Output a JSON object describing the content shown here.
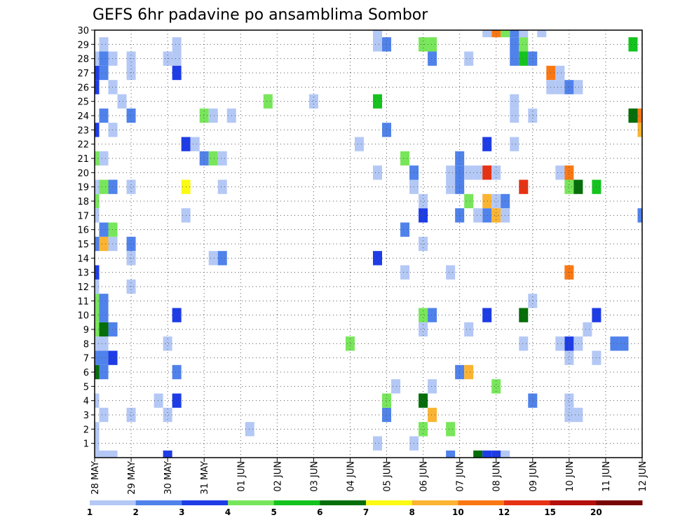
{
  "chart_data": {
    "type": "heatmap",
    "title": "GEFS 6hr padavine po ansamblima Sombor",
    "xlabel": "",
    "ylabel": "",
    "x_ticks": [
      "28 MAY",
      "29 MAY",
      "30 MAY",
      "31 MAY",
      "01 JUN",
      "02 JUN",
      "03 JUN",
      "04 JUN",
      "05 JUN",
      "06 JUN",
      "07 JUN",
      "08 JUN",
      "09 JUN",
      "10 JUN",
      "11 JUN",
      "12 JUN"
    ],
    "y_ticks": [
      "1",
      "2",
      "3",
      "4",
      "5",
      "6",
      "7",
      "8",
      "9",
      "10",
      "11",
      "12",
      "13",
      "14",
      "15",
      "16",
      "17",
      "18",
      "19",
      "20",
      "21",
      "22",
      "23",
      "24",
      "25",
      "26",
      "27",
      "28",
      "29",
      "30"
    ],
    "xlim": [
      0,
      60
    ],
    "ylim": [
      0,
      30
    ],
    "grid": true,
    "step_unit": "6h",
    "colorbar": {
      "labels": [
        "1",
        "2",
        "3",
        "4",
        "5",
        "6",
        "7",
        "8",
        "10",
        "12",
        "15",
        "20"
      ],
      "colors": [
        "#b4c8f5",
        "#5082eb",
        "#1e3ce6",
        "#78e65a",
        "#14c31e",
        "#056e0a",
        "#fafa14",
        "#fab432",
        "#fa7814",
        "#e63214",
        "#b40f0a",
        "#780505"
      ]
    },
    "cells": [
      [
        0,
        0,
        1
      ],
      [
        1,
        0,
        1
      ],
      [
        2,
        0,
        1
      ],
      [
        0,
        1,
        1
      ],
      [
        0,
        2,
        1
      ],
      [
        1,
        3,
        1
      ],
      [
        0,
        4,
        1
      ],
      [
        0,
        6,
        6
      ],
      [
        1,
        6,
        2
      ],
      [
        0,
        7,
        2
      ],
      [
        1,
        7,
        2
      ],
      [
        2,
        7,
        3
      ],
      [
        0,
        8,
        1
      ],
      [
        1,
        8,
        1
      ],
      [
        0,
        9,
        4
      ],
      [
        1,
        9,
        6
      ],
      [
        2,
        9,
        2
      ],
      [
        0,
        10,
        4
      ],
      [
        1,
        10,
        2
      ],
      [
        0,
        11,
        4
      ],
      [
        1,
        11,
        2
      ],
      [
        0,
        12,
        1
      ],
      [
        0,
        13,
        3
      ],
      [
        0,
        15,
        2
      ],
      [
        1,
        15,
        8
      ],
      [
        2,
        15,
        1
      ],
      [
        1,
        16,
        2
      ],
      [
        2,
        16,
        4
      ],
      [
        0,
        17,
        1
      ],
      [
        0,
        18,
        4
      ],
      [
        0,
        19,
        1
      ],
      [
        1,
        19,
        4
      ],
      [
        2,
        19,
        2
      ],
      [
        0,
        21,
        4
      ],
      [
        1,
        21,
        1
      ],
      [
        0,
        23,
        3
      ],
      [
        2,
        23,
        1
      ],
      [
        1,
        24,
        2
      ],
      [
        0,
        26,
        3
      ],
      [
        2,
        26,
        1
      ],
      [
        0,
        27,
        3
      ],
      [
        1,
        27,
        2
      ],
      [
        0,
        28,
        1
      ],
      [
        1,
        28,
        2
      ],
      [
        2,
        28,
        1
      ],
      [
        1,
        29,
        1
      ],
      [
        4,
        3,
        1
      ],
      [
        4,
        28,
        1
      ],
      [
        4,
        24,
        2
      ],
      [
        4,
        19,
        1
      ],
      [
        4,
        15,
        2
      ],
      [
        4,
        14,
        1
      ],
      [
        4,
        12,
        1
      ],
      [
        3,
        25,
        1
      ],
      [
        4,
        27,
        1
      ],
      [
        8,
        0,
        3
      ],
      [
        8,
        3,
        1
      ],
      [
        7,
        4,
        1
      ],
      [
        9,
        4,
        3
      ],
      [
        8,
        8,
        1
      ],
      [
        9,
        6,
        2
      ],
      [
        9,
        10,
        3
      ],
      [
        9,
        29,
        1
      ],
      [
        8,
        28,
        1
      ],
      [
        9,
        28,
        1
      ],
      [
        9,
        27,
        3
      ],
      [
        10,
        17,
        1
      ],
      [
        10,
        19,
        7
      ],
      [
        10,
        22,
        3
      ],
      [
        11,
        22,
        1
      ],
      [
        12,
        21,
        2
      ],
      [
        13,
        21,
        4
      ],
      [
        14,
        21,
        1
      ],
      [
        12,
        24,
        4
      ],
      [
        13,
        24,
        1
      ],
      [
        15,
        24,
        1
      ],
      [
        13,
        14,
        1
      ],
      [
        14,
        14,
        2
      ],
      [
        14,
        19,
        1
      ],
      [
        19,
        25,
        4
      ],
      [
        17,
        2,
        1
      ],
      [
        24,
        25,
        1
      ],
      [
        29,
        22,
        1
      ],
      [
        28,
        8,
        4
      ],
      [
        31,
        1,
        1
      ],
      [
        32,
        3,
        2
      ],
      [
        31,
        14,
        3
      ],
      [
        31,
        29,
        1
      ],
      [
        32,
        29,
        2
      ],
      [
        31,
        20,
        1
      ],
      [
        32,
        23,
        2
      ],
      [
        31,
        25,
        5
      ],
      [
        31,
        30,
        1
      ],
      [
        32,
        4,
        4
      ],
      [
        33,
        5,
        1
      ],
      [
        35,
        1,
        1
      ],
      [
        34,
        13,
        1
      ],
      [
        34,
        16,
        2
      ],
      [
        35,
        19,
        1
      ],
      [
        34,
        21,
        4
      ],
      [
        36,
        17,
        3
      ],
      [
        35,
        20,
        2
      ],
      [
        36,
        18,
        1
      ],
      [
        36,
        15,
        1
      ],
      [
        36,
        9,
        1
      ],
      [
        36,
        10,
        4
      ],
      [
        37,
        10,
        2
      ],
      [
        36,
        4,
        6
      ],
      [
        37,
        5,
        1
      ],
      [
        37,
        3,
        8
      ],
      [
        36,
        2,
        4
      ],
      [
        37,
        28,
        2
      ],
      [
        36,
        29,
        4
      ],
      [
        37,
        29,
        4
      ],
      [
        39,
        20,
        1
      ],
      [
        39,
        19,
        1
      ],
      [
        40,
        20,
        2
      ],
      [
        40,
        19,
        2
      ],
      [
        40,
        21,
        2
      ],
      [
        41,
        20,
        1
      ],
      [
        41,
        18,
        4
      ],
      [
        40,
        17,
        2
      ],
      [
        39,
        2,
        4
      ],
      [
        39,
        0,
        2
      ],
      [
        39,
        13,
        1
      ],
      [
        40,
        6,
        2
      ],
      [
        41,
        6,
        8
      ],
      [
        41,
        28,
        1
      ],
      [
        41,
        9,
        1
      ],
      [
        43,
        17,
        2
      ],
      [
        42,
        17,
        1
      ],
      [
        42,
        20,
        1
      ],
      [
        43,
        20,
        10
      ],
      [
        44,
        20,
        1
      ],
      [
        43,
        18,
        8
      ],
      [
        44,
        18,
        1
      ],
      [
        44,
        17,
        8
      ],
      [
        45,
        18,
        2
      ],
      [
        45,
        17,
        1
      ],
      [
        43,
        10,
        3
      ],
      [
        43,
        22,
        3
      ],
      [
        44,
        5,
        4
      ],
      [
        42,
        0,
        6
      ],
      [
        43,
        0,
        3
      ],
      [
        44,
        0,
        3
      ],
      [
        45,
        0,
        1
      ],
      [
        46,
        24,
        1
      ],
      [
        46,
        22,
        1
      ],
      [
        46,
        25,
        1
      ],
      [
        47,
        28,
        5
      ],
      [
        47,
        29,
        4
      ],
      [
        46,
        28,
        2
      ],
      [
        46,
        29,
        2
      ],
      [
        48,
        28,
        2
      ],
      [
        47,
        30,
        1
      ],
      [
        46,
        30,
        2
      ],
      [
        45,
        30,
        4
      ],
      [
        44,
        30,
        9
      ],
      [
        43,
        30,
        1
      ],
      [
        47,
        19,
        10
      ],
      [
        48,
        11,
        1
      ],
      [
        47,
        10,
        6
      ],
      [
        48,
        4,
        2
      ],
      [
        47,
        8,
        1
      ],
      [
        48,
        24,
        1
      ],
      [
        49,
        30,
        1
      ],
      [
        50,
        27,
        9
      ],
      [
        51,
        27,
        1
      ],
      [
        50,
        26,
        1
      ],
      [
        51,
        26,
        1
      ],
      [
        51,
        20,
        1
      ],
      [
        52,
        20,
        9
      ],
      [
        52,
        19,
        4
      ],
      [
        52,
        13,
        9
      ],
      [
        52,
        8,
        3
      ],
      [
        52,
        7,
        1
      ],
      [
        53,
        8,
        1
      ],
      [
        52,
        4,
        1
      ],
      [
        51,
        8,
        1
      ],
      [
        52,
        3,
        1
      ],
      [
        53,
        3,
        1
      ],
      [
        52,
        26,
        2
      ],
      [
        53,
        26,
        1
      ],
      [
        53,
        19,
        6
      ],
      [
        55,
        19,
        5
      ],
      [
        54,
        9,
        1
      ],
      [
        55,
        10,
        3
      ],
      [
        55,
        7,
        1
      ],
      [
        57,
        8,
        2
      ],
      [
        58,
        8,
        2
      ],
      [
        59,
        24,
        6
      ],
      [
        60,
        24,
        9
      ],
      [
        60,
        23,
        8
      ],
      [
        60,
        17,
        2
      ],
      [
        59,
        29,
        5
      ]
    ]
  }
}
